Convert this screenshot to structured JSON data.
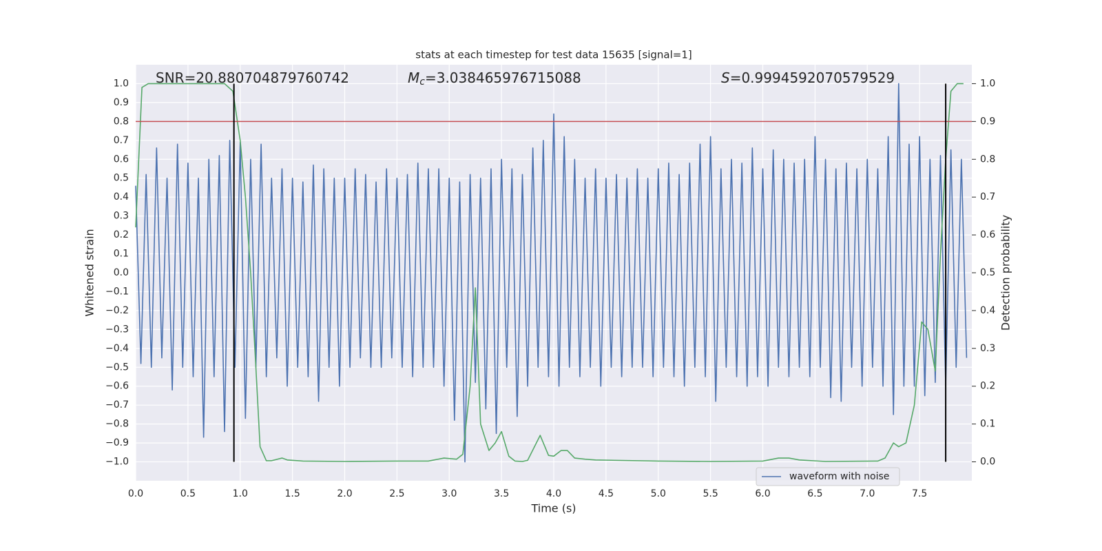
{
  "chart_data": {
    "type": "line",
    "title": "stats at each timestep for test data 15635 [signal=1]",
    "x_label": "Time (s)",
    "y_label": "Whitened strain",
    "y2_label": "Detection probability",
    "grid": true,
    "legend": "lower right",
    "xlim": [
      0,
      8
    ],
    "ylim": [
      -1.1,
      1.1
    ],
    "y2lim": [
      -0.05,
      1.05
    ],
    "xticks": [
      {
        "value": 0,
        "label": "0.0"
      },
      0.5,
      {
        "value": 1,
        "label": "1.0"
      },
      1.5,
      {
        "value": 2,
        "label": "2.0"
      },
      2.5,
      {
        "value": 3,
        "label": "3.0"
      },
      3.5,
      {
        "value": 4,
        "label": "4.0"
      },
      4.5,
      {
        "value": 5,
        "label": "5.0"
      },
      5.5,
      {
        "value": 6,
        "label": "6.0"
      },
      6.5,
      {
        "value": 7,
        "label": "7.0"
      },
      7.5
    ],
    "yticks": [
      {
        "value": -1,
        "label": "−1.0"
      },
      {
        "value": -0.9,
        "label": "−0.9"
      },
      {
        "value": -0.8,
        "label": "−0.8"
      },
      {
        "value": -0.7,
        "label": "−0.7"
      },
      {
        "value": -0.6,
        "label": "−0.6"
      },
      {
        "value": -0.5,
        "label": "−0.5"
      },
      {
        "value": -0.4,
        "label": "−0.4"
      },
      {
        "value": -0.3,
        "label": "−0.3"
      },
      {
        "value": -0.2,
        "label": "−0.2"
      },
      {
        "value": -0.1,
        "label": "−0.1"
      },
      {
        "value": 0,
        "label": "0.0"
      },
      0.1,
      0.2,
      0.3,
      0.4,
      0.5,
      0.6,
      0.7,
      0.8,
      0.9,
      {
        "value": 1,
        "label": "1.0"
      }
    ],
    "y2ticks": [
      {
        "value": 0,
        "label": "0.0"
      },
      0.1,
      0.2,
      0.3,
      0.4,
      0.5,
      0.6,
      0.7,
      0.8,
      0.9,
      {
        "value": 1,
        "label": "1.0"
      }
    ],
    "annotations": [
      {
        "label": "SNR",
        "value": "=20.880704879760742",
        "math": false
      },
      {
        "label": "M",
        "subscript": "c",
        "value": "=3.038465976715088",
        "math": true
      },
      {
        "label": "S",
        "value": "=0.9994592070579529",
        "math": true
      }
    ],
    "hlines": [
      {
        "y": 0.8,
        "color": "#c44e52"
      }
    ],
    "vlines": [
      {
        "x": 0.94,
        "ymin": -1,
        "ymax": 1,
        "color": "#000000"
      },
      {
        "x": 7.75,
        "ymin": -1,
        "ymax": 1,
        "color": "#000000"
      }
    ],
    "series": [
      {
        "name": "waveform with noise",
        "color": "#4c72b0",
        "x": [
          0,
          0.05,
          0.1,
          0.15,
          0.2,
          0.25,
          0.3,
          0.35,
          0.4,
          0.45,
          0.5,
          0.55,
          0.6,
          0.65,
          0.7,
          0.75,
          0.8,
          0.85,
          0.9,
          0.95,
          1,
          1.05,
          1.1,
          1.15,
          1.2,
          1.25,
          1.3,
          1.35,
          1.4,
          1.45,
          1.5,
          1.55,
          1.6,
          1.65,
          1.7,
          1.75,
          1.8,
          1.85,
          1.9,
          1.95,
          2,
          2.05,
          2.1,
          2.15,
          2.2,
          2.25,
          2.3,
          2.35,
          2.4,
          2.45,
          2.5,
          2.55,
          2.6,
          2.65,
          2.7,
          2.75,
          2.8,
          2.85,
          2.9,
          2.95,
          3,
          3.05,
          3.1,
          3.15,
          3.2,
          3.25,
          3.3,
          3.35,
          3.4,
          3.45,
          3.5,
          3.55,
          3.6,
          3.65,
          3.7,
          3.75,
          3.8,
          3.85,
          3.9,
          3.95,
          4,
          4.05,
          4.1,
          4.15,
          4.2,
          4.25,
          4.3,
          4.35,
          4.4,
          4.45,
          4.5,
          4.55,
          4.6,
          4.65,
          4.7,
          4.75,
          4.8,
          4.85,
          4.9,
          4.95,
          5,
          5.05,
          5.1,
          5.15,
          5.2,
          5.25,
          5.3,
          5.35,
          5.4,
          5.45,
          5.5,
          5.55,
          5.6,
          5.65,
          5.7,
          5.75,
          5.8,
          5.85,
          5.9,
          5.95,
          6,
          6.05,
          6.1,
          6.15,
          6.2,
          6.25,
          6.3,
          6.35,
          6.4,
          6.45,
          6.5,
          6.55,
          6.6,
          6.65,
          6.7,
          6.75,
          6.8,
          6.85,
          6.9,
          6.95,
          7,
          7.05,
          7.1,
          7.15,
          7.2,
          7.25,
          7.3,
          7.35,
          7.4,
          7.45,
          7.5,
          7.55,
          7.6,
          7.65,
          7.7,
          7.75,
          7.8,
          7.85,
          7.9,
          7.95
        ],
        "values": [
          0.46,
          -0.48,
          0.52,
          -0.5,
          0.66,
          -0.45,
          0.5,
          -0.62,
          0.68,
          -0.5,
          0.58,
          -0.55,
          0.5,
          -0.87,
          0.6,
          -0.55,
          0.62,
          -0.84,
          0.7,
          -0.5,
          0.69,
          -0.77,
          0.6,
          -0.5,
          0.68,
          -0.55,
          0.5,
          -0.45,
          0.55,
          -0.6,
          0.5,
          -0.5,
          0.48,
          -0.55,
          0.57,
          -0.68,
          0.55,
          -0.5,
          0.5,
          -0.6,
          0.5,
          -0.5,
          0.55,
          -0.45,
          0.52,
          -0.5,
          0.48,
          -0.5,
          0.55,
          -0.45,
          0.5,
          -0.5,
          0.52,
          -0.55,
          0.58,
          -0.5,
          0.55,
          -0.5,
          0.55,
          -0.6,
          0.5,
          -0.78,
          0.48,
          -1.0,
          0.52,
          -0.58,
          0.5,
          -0.72,
          0.55,
          -0.85,
          0.6,
          -0.5,
          0.55,
          -0.76,
          0.52,
          -0.6,
          0.66,
          -0.5,
          0.7,
          -0.55,
          0.84,
          -0.6,
          0.72,
          -0.5,
          0.6,
          -0.55,
          0.5,
          -0.5,
          0.55,
          -0.6,
          0.5,
          -0.5,
          0.52,
          -0.55,
          0.5,
          -0.5,
          0.55,
          -0.5,
          0.5,
          -0.55,
          0.55,
          -0.5,
          0.58,
          -0.55,
          0.52,
          -0.6,
          0.58,
          -0.5,
          0.68,
          -0.55,
          0.72,
          -0.68,
          0.55,
          -0.5,
          0.6,
          -0.55,
          0.58,
          -0.6,
          0.66,
          -0.55,
          0.55,
          -0.6,
          0.65,
          -0.5,
          0.6,
          -0.55,
          0.58,
          -0.5,
          0.6,
          -0.55,
          0.72,
          -0.5,
          0.6,
          -0.66,
          0.55,
          -0.68,
          0.58,
          -0.5,
          0.55,
          -0.6,
          0.6,
          -0.5,
          0.55,
          -0.6,
          0.72,
          -0.75,
          1.0,
          -0.6,
          0.68,
          -0.6,
          0.72,
          -0.65,
          0.6,
          -0.58,
          0.62,
          -0.6,
          0.65,
          -0.5,
          0.6,
          -0.45
        ]
      },
      {
        "color": "#55a868",
        "axis": "y2",
        "x": [
          0,
          0.06,
          0.12,
          0.5,
          0.85,
          0.93,
          1.0,
          1.05,
          1.1,
          1.15,
          1.19,
          1.25,
          1.3,
          1.4,
          1.45,
          1.6,
          2.0,
          2.5,
          2.8,
          2.95,
          3.07,
          3.13,
          3.2,
          3.25,
          3.3,
          3.38,
          3.44,
          3.5,
          3.57,
          3.63,
          3.7,
          3.75,
          3.87,
          3.95,
          4.0,
          4.07,
          4.13,
          4.2,
          4.3,
          4.4,
          5.0,
          5.5,
          6.0,
          6.15,
          6.25,
          6.35,
          6.6,
          7.1,
          7.17,
          7.25,
          7.3,
          7.37,
          7.45,
          7.52,
          7.58,
          7.65,
          7.7,
          7.75,
          7.8,
          7.86,
          7.92
        ],
        "values": [
          0.62,
          0.99,
          1.0,
          1.0,
          1.0,
          0.98,
          0.85,
          0.7,
          0.5,
          0.25,
          0.04,
          0.003,
          0.003,
          0.01,
          0.005,
          0.002,
          0.001,
          0.002,
          0.002,
          0.01,
          0.007,
          0.02,
          0.2,
          0.46,
          0.1,
          0.03,
          0.05,
          0.08,
          0.015,
          0.002,
          0.001,
          0.004,
          0.07,
          0.017,
          0.015,
          0.03,
          0.03,
          0.01,
          0.007,
          0.005,
          0.002,
          0.001,
          0.002,
          0.01,
          0.01,
          0.005,
          0.001,
          0.002,
          0.01,
          0.05,
          0.04,
          0.05,
          0.15,
          0.37,
          0.35,
          0.24,
          0.55,
          0.8,
          0.98,
          1.0,
          1.0
        ]
      }
    ]
  }
}
